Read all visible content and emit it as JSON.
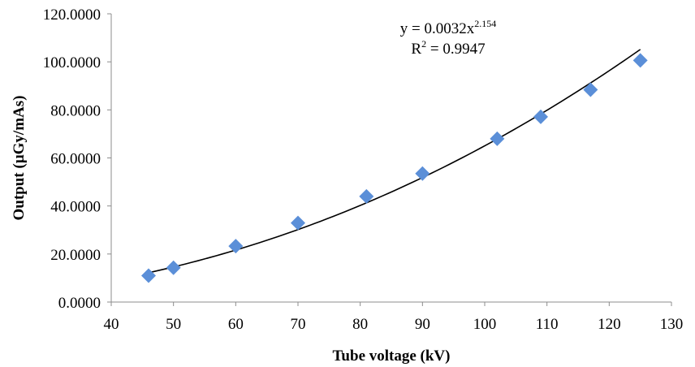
{
  "chart_data": {
    "type": "scatter",
    "x": [
      46,
      50,
      60,
      70,
      81,
      90,
      102,
      109,
      117,
      125
    ],
    "y": [
      11.0,
      14.3,
      23.3,
      32.9,
      44.0,
      53.5,
      68.0,
      77.1,
      88.4,
      100.6
    ],
    "xlabel": "Tube voltage (kV)",
    "ylabel": "Output (µGy/mAs)",
    "xlim": [
      40,
      130
    ],
    "ylim": [
      0,
      120
    ],
    "x_ticks": [
      40,
      50,
      60,
      70,
      80,
      90,
      100,
      110,
      120,
      130
    ],
    "x_tick_labels": [
      "40",
      "50",
      "60",
      "70",
      "80",
      "90",
      "100",
      "110",
      "120",
      "130"
    ],
    "y_ticks": [
      0,
      20,
      40,
      60,
      80,
      100,
      120
    ],
    "y_tick_labels": [
      "0.0000",
      "20.0000",
      "40.0000",
      "60.0000",
      "80.0000",
      "100.0000",
      "120.0000"
    ],
    "grid": false,
    "legend": "none",
    "marker_color": "#5b8fd8",
    "trendline": {
      "type": "power",
      "coefficient": 0.0032,
      "exponent": 2.154,
      "x_range": [
        46,
        125
      ],
      "color": "#000000"
    },
    "annotation": {
      "equation_main": "y = 0.0032x",
      "equation_exponent": "2.154",
      "r2_prefix": "R",
      "r2_sup": "2",
      "r2_rest": " = 0.9947"
    }
  }
}
